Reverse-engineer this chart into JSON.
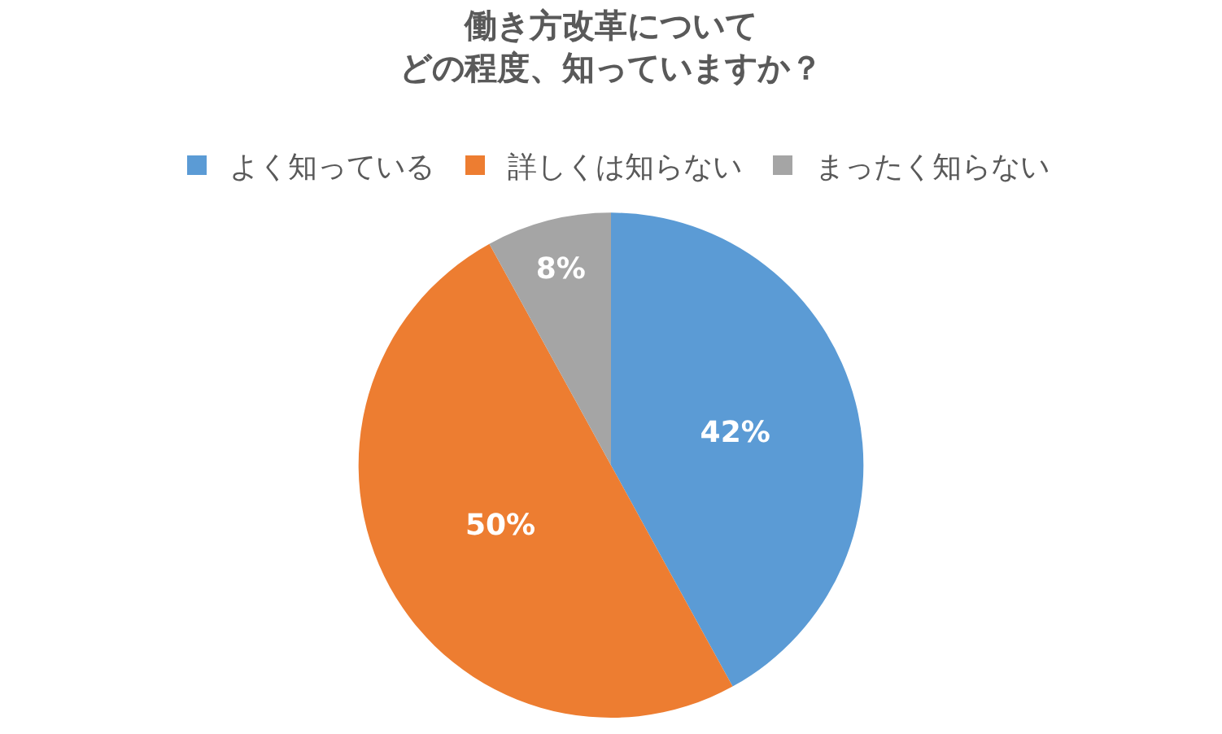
{
  "chart_data": {
    "type": "pie",
    "title": "働き方改革について",
    "subtitle": "どの程度、知っていますか？",
    "categories": [
      "よく知っている",
      "詳しくは知らない",
      "まったく知らない"
    ],
    "values": [
      42,
      50,
      8
    ],
    "colors": [
      "#5b9bd5",
      "#ed7d31",
      "#a5a5a5"
    ],
    "value_labels": [
      "42%",
      "50%",
      "8%"
    ],
    "legend": "top"
  }
}
